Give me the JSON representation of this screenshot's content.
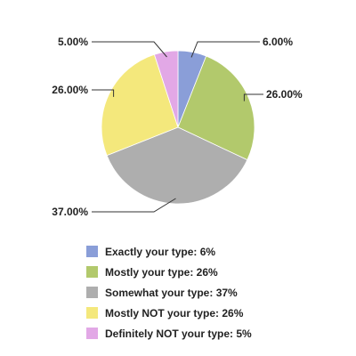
{
  "chart_data": {
    "type": "pie",
    "title": "",
    "legend_position": "bottom",
    "slices": [
      {
        "name": "Exactly your type",
        "value": 6,
        "label": "6.00%",
        "legend": "Exactly your type: 6%",
        "color": "#8a9ed8"
      },
      {
        "name": "Mostly your type",
        "value": 26,
        "label": "26.00%",
        "legend": "Mostly your type: 26%",
        "color": "#b2c96c"
      },
      {
        "name": "Somewhat your type",
        "value": 37,
        "label": "37.00%",
        "legend": "Somewhat your type: 37%",
        "color": "#aeaeae"
      },
      {
        "name": "Mostly NOT your type",
        "value": 26,
        "label": "26.00%",
        "legend": "Mostly NOT your type: 26%",
        "color": "#f4e87c"
      },
      {
        "name": "Definitely NOT your type",
        "value": 5,
        "label": "5.00%",
        "legend": "Definitely NOT your type: 5%",
        "color": "#e2a8e6"
      }
    ]
  }
}
